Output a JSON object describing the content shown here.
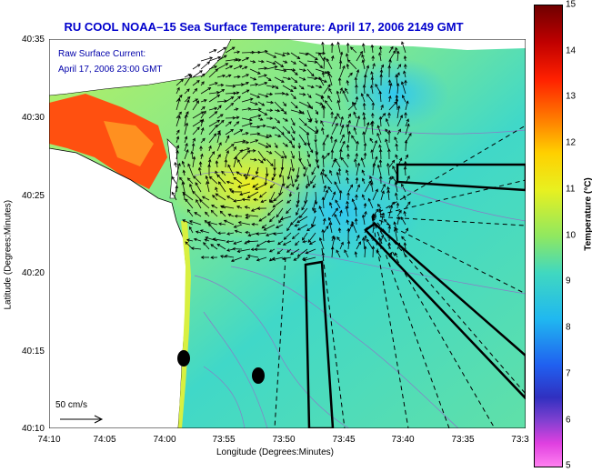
{
  "title": "RU COOL  NOAA–15 Sea Surface Temperature:  April 17, 2006 2149 GMT",
  "annotation": {
    "line1": "Raw Surface Current:",
    "line2": "April 17, 2006 23:00 GMT"
  },
  "scale_label": "50 cm/s",
  "x_axis": {
    "title": "Longitude (Degrees:Minutes)",
    "ticks": [
      "74:10",
      "74:05",
      "74:00",
      "73:55",
      "73:50",
      "73:45",
      "73:40",
      "73:35",
      "73:3"
    ]
  },
  "y_axis": {
    "title": "Latitude (Degrees:Minutes)",
    "ticks": [
      "40:35",
      "40:30",
      "40:25",
      "40:20",
      "40:15",
      "40:10"
    ]
  },
  "colorbar": {
    "title": "Temperature (°C)",
    "ticks": [
      "15",
      "14",
      "13",
      "12",
      "11",
      "10",
      "9",
      "8",
      "7",
      "6",
      "5"
    ],
    "range": [
      5,
      15
    ]
  },
  "colors": {
    "title": "#0000cc",
    "water_mid": "#5fe0b0",
    "water_warm": "#e0f040",
    "land": "#ffffff",
    "hot": "#ff3000"
  }
}
